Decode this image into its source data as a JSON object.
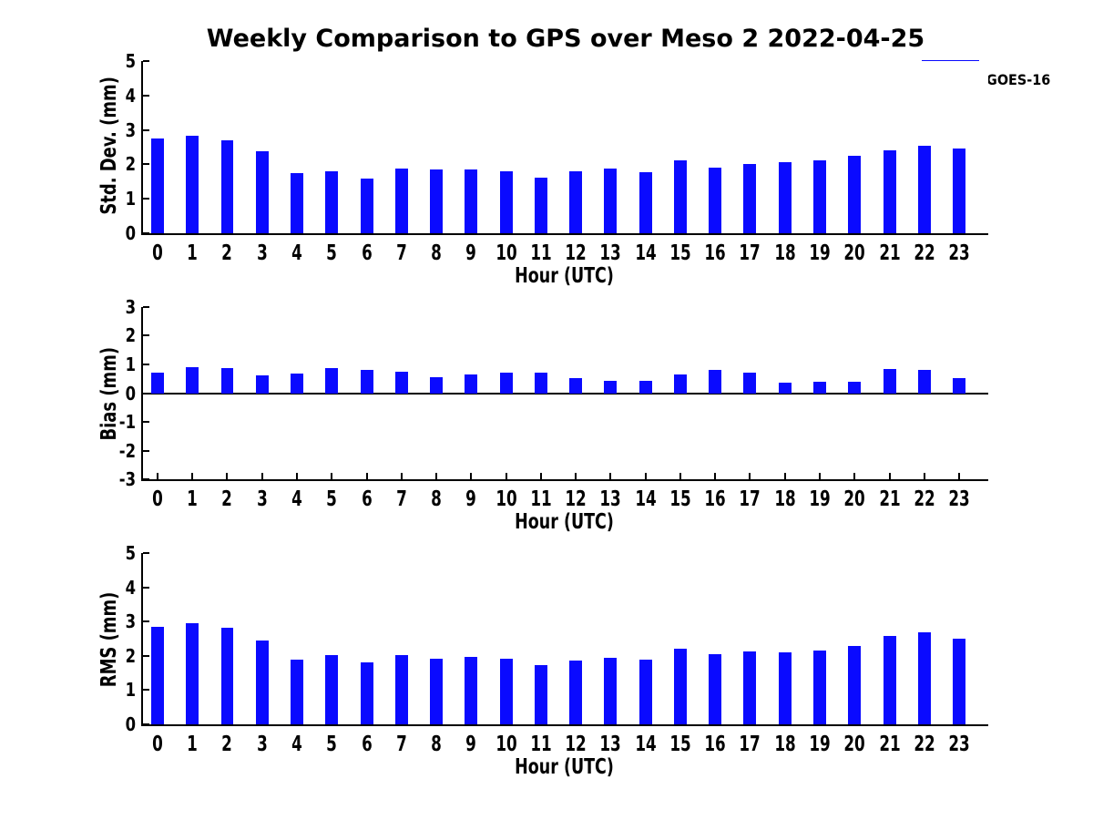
{
  "chart_data": {
    "type": "bar",
    "title": "Weekly Comparison to GPS over Meso 2 2022-04-25",
    "xlabel": "Hour (UTC)",
    "bar_color": "#0a0aff",
    "legend": {
      "label": "GOES-16",
      "color": "#0a0aff",
      "position": "top-right"
    },
    "grid": false,
    "categories": [
      "0",
      "1",
      "2",
      "3",
      "4",
      "5",
      "6",
      "7",
      "8",
      "9",
      "10",
      "11",
      "12",
      "13",
      "14",
      "15",
      "16",
      "17",
      "18",
      "19",
      "20",
      "21",
      "22",
      "23"
    ],
    "panels": [
      {
        "name": "std-dev",
        "ylabel": "Std. Dev. (mm)",
        "ylim": [
          0,
          5
        ],
        "yticks": [
          5,
          4,
          3,
          2,
          1,
          0
        ],
        "values": [
          2.75,
          2.82,
          2.7,
          2.38,
          1.75,
          1.8,
          1.6,
          1.88,
          1.85,
          1.85,
          1.8,
          1.62,
          1.79,
          1.89,
          1.78,
          2.11,
          1.9,
          2.02,
          2.07,
          2.13,
          2.25,
          2.42,
          2.53,
          2.46
        ]
      },
      {
        "name": "bias",
        "ylabel": "Bias (mm)",
        "ylim": [
          -3,
          3
        ],
        "yticks": [
          3,
          2,
          1,
          0,
          -1,
          -2,
          -3
        ],
        "values": [
          0.72,
          0.89,
          0.86,
          0.61,
          0.69,
          0.86,
          0.8,
          0.74,
          0.57,
          0.66,
          0.71,
          0.7,
          0.51,
          0.43,
          0.44,
          0.66,
          0.82,
          0.7,
          0.38,
          0.4,
          0.41,
          0.85,
          0.8,
          0.53
        ]
      },
      {
        "name": "rms",
        "ylabel": "RMS (mm)",
        "ylim": [
          0,
          5
        ],
        "yticks": [
          5,
          4,
          3,
          2,
          1,
          0
        ],
        "values": [
          2.85,
          2.96,
          2.82,
          2.46,
          1.88,
          2.01,
          1.8,
          2.01,
          1.92,
          1.96,
          1.92,
          1.74,
          1.87,
          1.95,
          1.88,
          2.21,
          2.06,
          2.13,
          2.11,
          2.15,
          2.3,
          2.59,
          2.68,
          2.51
        ]
      }
    ]
  }
}
